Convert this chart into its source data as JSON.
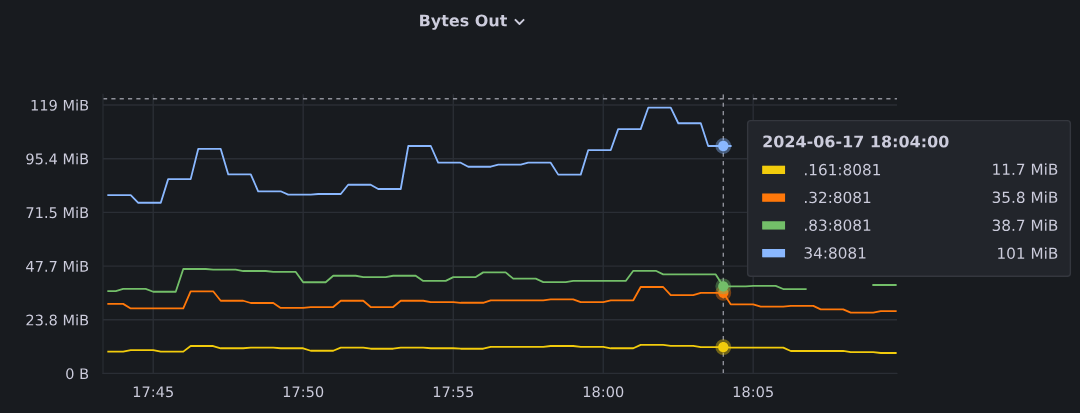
{
  "chart_data": {
    "type": "line",
    "title": "Bytes Out",
    "xlim": [
      17.7221,
      18.1632
    ],
    "ylim": [
      0,
      124
    ],
    "xticks": [
      {
        "value": 17.75,
        "label": "17:45"
      },
      {
        "value": 17.8333,
        "label": "17:50"
      },
      {
        "value": 17.9167,
        "label": "17:55"
      },
      {
        "value": 18.0,
        "label": "18:00"
      },
      {
        "value": 18.0833,
        "label": "18:05"
      }
    ],
    "yticks": [
      {
        "value": 0,
        "label": "0 B"
      },
      {
        "value": 23.84,
        "label": "23.8 MiB"
      },
      {
        "value": 47.68,
        "label": "47.7 MiB"
      },
      {
        "value": 71.53,
        "label": "71.5 MiB"
      },
      {
        "value": 95.37,
        "label": "95.4 MiB"
      },
      {
        "value": 119.2,
        "label": "119 MiB"
      }
    ],
    "grid": true,
    "legend": "top right",
    "legend_title": "2024-06-17 18:04:00",
    "ref_lines": [
      {
        "axis": "x",
        "value": 18.0667,
        "color": "#8e9099",
        "line_style": "dashed"
      },
      {
        "axis": "y",
        "value": 122,
        "color": "#8e9099",
        "line_style": "dashed"
      }
    ],
    "annotations": [
      "11.7 MiB",
      "35.8 MiB",
      "38.7 MiB",
      "101 MiB"
    ],
    "series": [
      {
        "name": ".161:8081",
        "color": "#f2cc0c",
        "x": [
          17.725,
          17.7333,
          17.7375,
          17.75,
          17.7542,
          17.7667,
          17.7708,
          17.7833,
          17.7875,
          17.8,
          17.8042,
          17.8167,
          17.8208,
          17.8333,
          17.8375,
          17.85,
          17.8542,
          17.8667,
          17.8708,
          17.8833,
          17.8875,
          17.9,
          17.9042,
          17.9167,
          17.9208,
          17.9333,
          17.9375,
          17.95,
          17.9542,
          17.9667,
          17.9708,
          17.9833,
          17.9875,
          18.0,
          18.0042,
          18.0167,
          18.0208,
          18.0333,
          18.0375,
          18.05,
          18.0542,
          18.0667,
          18.0708,
          18.0833,
          18.0875,
          18.1,
          18.1042,
          18.1167,
          18.1208,
          18.1333,
          18.1375,
          18.15,
          18.1542,
          18.1625
        ],
        "values": [
          9.7,
          9.7,
          10.4,
          10.4,
          9.7,
          9.7,
          12.2,
          12.2,
          11.2,
          11.2,
          11.5,
          11.5,
          11.2,
          11.2,
          10.1,
          10.1,
          11.5,
          11.5,
          11.0,
          11.0,
          11.5,
          11.5,
          11.2,
          11.2,
          11.0,
          11.0,
          11.8,
          11.8,
          11.8,
          11.8,
          12.2,
          12.2,
          11.8,
          11.8,
          11.2,
          11.2,
          12.7,
          12.7,
          12.3,
          12.3,
          11.7,
          11.7,
          11.5,
          11.5,
          11.5,
          11.5,
          10.0,
          10.0,
          10.0,
          10.0,
          9.5,
          9.5,
          9.1,
          9.1
        ]
      },
      {
        "name": ".32:8081",
        "color": "#ff780a",
        "x": [
          17.725,
          17.7333,
          17.7375,
          17.75,
          17.7542,
          17.7667,
          17.7708,
          17.7833,
          17.7875,
          17.8,
          17.8042,
          17.8167,
          17.8208,
          17.8333,
          17.8375,
          17.85,
          17.8542,
          17.8667,
          17.8708,
          17.8833,
          17.8875,
          17.9,
          17.9042,
          17.9167,
          17.9208,
          17.9333,
          17.9375,
          17.95,
          17.9542,
          17.9667,
          17.9708,
          17.9833,
          17.9875,
          18.0,
          18.0042,
          18.0167,
          18.0208,
          18.0333,
          18.0375,
          18.05,
          18.0542,
          18.0667,
          18.0708,
          18.0833,
          18.0875,
          18.1,
          18.1042,
          18.1167,
          18.1208,
          18.1333,
          18.1375,
          18.15,
          18.1542,
          18.1625
        ],
        "values": [
          30.9,
          30.9,
          28.9,
          28.9,
          28.9,
          28.9,
          36.5,
          36.5,
          32.3,
          32.3,
          31.3,
          31.3,
          29.1,
          29.1,
          29.5,
          29.5,
          32.3,
          32.3,
          29.5,
          29.5,
          32.3,
          32.3,
          31.7,
          31.7,
          31.4,
          31.4,
          32.5,
          32.5,
          32.5,
          32.5,
          32.9,
          32.9,
          31.7,
          31.7,
          32.5,
          32.5,
          38.4,
          38.4,
          34.8,
          34.8,
          35.8,
          35.8,
          30.7,
          30.7,
          29.7,
          29.7,
          30.0,
          30.0,
          28.5,
          28.5,
          27.0,
          27.0,
          27.7,
          27.7
        ]
      },
      {
        "name": ".83:8081",
        "color": "#73bf69",
        "x": [
          17.725,
          17.7292,
          17.7333,
          17.7458,
          17.75,
          17.7625,
          17.7667,
          17.7792,
          17.7833,
          17.7958,
          17.8,
          17.8125,
          17.8167,
          17.8292,
          17.8333,
          17.8458,
          17.85,
          17.8625,
          17.8667,
          17.8792,
          17.8833,
          17.8958,
          17.9,
          17.9125,
          17.9167,
          17.9292,
          17.9333,
          17.9458,
          17.95,
          17.9625,
          17.9667,
          17.9792,
          17.9833,
          17.9958,
          18.0,
          18.0125,
          18.0167,
          18.0292,
          18.0333,
          18.0458,
          18.05,
          18.0625,
          18.0667,
          18.0792,
          18.0833,
          18.0958,
          18.1,
          18.1125,
          18.1167,
          18.1292,
          18.1333,
          18.1458,
          18.15,
          18.1625
        ],
        "values": [
          36.6,
          36.6,
          37.6,
          37.6,
          36.3,
          36.3,
          46.4,
          46.4,
          46.1,
          46.1,
          45.5,
          45.5,
          45.1,
          45.1,
          40.5,
          40.5,
          43.4,
          43.4,
          42.8,
          42.8,
          43.4,
          43.4,
          41.1,
          41.1,
          42.8,
          42.8,
          44.9,
          44.9,
          42.1,
          42.1,
          40.6,
          40.6,
          41.1,
          41.1,
          41.1,
          41.1,
          45.6,
          45.6,
          44.0,
          44.0,
          44.0,
          44.0,
          38.7,
          38.7,
          38.9,
          38.9,
          37.5,
          37.5,
          null,
          null,
          null,
          null,
          39.3,
          39.3
        ]
      },
      {
        "name": "34:8081",
        "color": "#8ab8ff",
        "x": [
          17.725,
          17.7375,
          17.7417,
          17.7542,
          17.7583,
          17.7708,
          17.775,
          17.7875,
          17.7917,
          17.8042,
          17.8083,
          17.8208,
          17.825,
          17.8375,
          17.8417,
          17.8542,
          17.8583,
          17.8708,
          17.875,
          17.8875,
          17.8917,
          17.9042,
          17.9083,
          17.9208,
          17.925,
          17.9375,
          17.9417,
          17.9542,
          17.9583,
          17.9708,
          17.975,
          17.9875,
          17.9917,
          18.0042,
          18.0083,
          18.0208,
          18.025,
          18.0375,
          18.0417,
          18.0542,
          18.0583,
          18.0708
        ],
        "values": [
          79.2,
          79.2,
          75.8,
          75.8,
          86.3,
          86.3,
          99.7,
          99.7,
          88.4,
          88.4,
          80.9,
          80.9,
          79.4,
          79.4,
          79.7,
          79.7,
          83.8,
          83.8,
          81.9,
          81.9,
          101,
          101,
          93.6,
          93.6,
          91.8,
          91.8,
          92.7,
          92.7,
          93.6,
          93.6,
          88.3,
          88.3,
          99.2,
          99.2,
          108.5,
          108.5,
          118,
          118,
          111.1,
          111.1,
          101,
          101
        ]
      },
      {
        "type": "scatter",
        "marker": "circle",
        "x": [
          18.0667,
          18.0667,
          18.0667,
          18.0667
        ],
        "values": [
          11.7,
          35.8,
          38.7,
          101
        ],
        "colors": [
          "#f2cc0c",
          "#ff780a",
          "#73bf69",
          "#8ab8ff"
        ]
      }
    ]
  }
}
